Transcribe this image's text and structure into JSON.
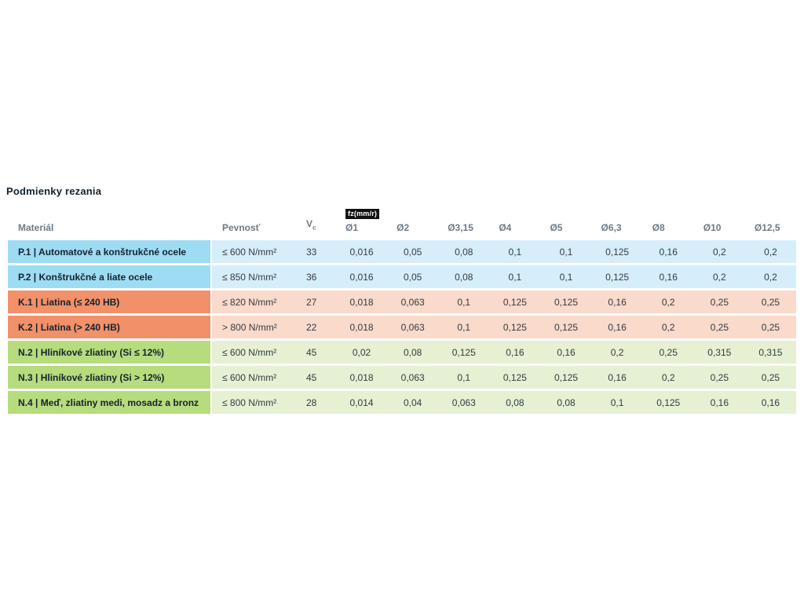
{
  "chart_data": {
    "type": "table",
    "title": "Podmienky rezania",
    "feed_unit_badge": "fz(mm/r)",
    "columns": {
      "material": "Materiál",
      "strength": "Pevnosť",
      "vc_base": "V",
      "vc_sub": "c",
      "diameters": [
        "Ø1",
        "Ø2",
        "Ø3,15",
        "Ø4",
        "Ø5",
        "Ø6,3",
        "Ø8",
        "Ø10",
        "Ø12,5"
      ]
    },
    "rows": [
      {
        "group": "P",
        "material": "P.1 | Automatové a konštrukčné ocele",
        "strength": "≤ 600 N/mm²",
        "vc": "33",
        "values": [
          "0,016",
          "0,05",
          "0,08",
          "0,1",
          "0,1",
          "0,125",
          "0,16",
          "0,2",
          "0,2"
        ]
      },
      {
        "group": "P",
        "material": "P.2 | Konštrukčné a liate ocele",
        "strength": "≤ 850 N/mm²",
        "vc": "36",
        "values": [
          "0,016",
          "0,05",
          "0,08",
          "0,1",
          "0,1",
          "0,125",
          "0,16",
          "0,2",
          "0,2"
        ]
      },
      {
        "group": "K",
        "material": "K.1 | Liatina (≤ 240 HB)",
        "strength": "≤ 820 N/mm²",
        "vc": "27",
        "values": [
          "0,018",
          "0,063",
          "0,1",
          "0,125",
          "0,125",
          "0,16",
          "0,2",
          "0,25",
          "0,25"
        ]
      },
      {
        "group": "K",
        "material": "K.2 | Liatina (> 240 HB)",
        "strength": "> 800 N/mm²",
        "vc": "22",
        "values": [
          "0,018",
          "0,063",
          "0,1",
          "0,125",
          "0,125",
          "0,16",
          "0,2",
          "0,25",
          "0,25"
        ]
      },
      {
        "group": "N",
        "material": "N.2 | Hliníkové zliatiny (Si ≤ 12%)",
        "strength": "≤ 600 N/mm²",
        "vc": "45",
        "values": [
          "0,02",
          "0,08",
          "0,125",
          "0,16",
          "0,16",
          "0,2",
          "0,25",
          "0,315",
          "0,315"
        ]
      },
      {
        "group": "N",
        "material": "N.3 | Hliníkové zliatiny (Si > 12%)",
        "strength": "≤ 600 N/mm²",
        "vc": "45",
        "values": [
          "0,018",
          "0,063",
          "0,1",
          "0,125",
          "0,125",
          "0,16",
          "0,2",
          "0,25",
          "0,25"
        ]
      },
      {
        "group": "N",
        "material": "N.4 | Meď, zliatiny medi, mosadz a bronz",
        "strength": "≤ 800 N/mm²",
        "vc": "28",
        "values": [
          "0,014",
          "0,04",
          "0,063",
          "0,08",
          "0,08",
          "0,1",
          "0,125",
          "0,16",
          "0,16"
        ]
      }
    ]
  },
  "colors": {
    "P": {
      "dark": "#9EDCF4",
      "light": "#D6EEF9"
    },
    "K": {
      "dark": "#F2906A",
      "light": "#FADACB"
    },
    "N": {
      "dark": "#B6DC7E",
      "light": "#E6F1D4"
    },
    "badge_bg": "#111111",
    "badge_text": "#ffffff"
  }
}
